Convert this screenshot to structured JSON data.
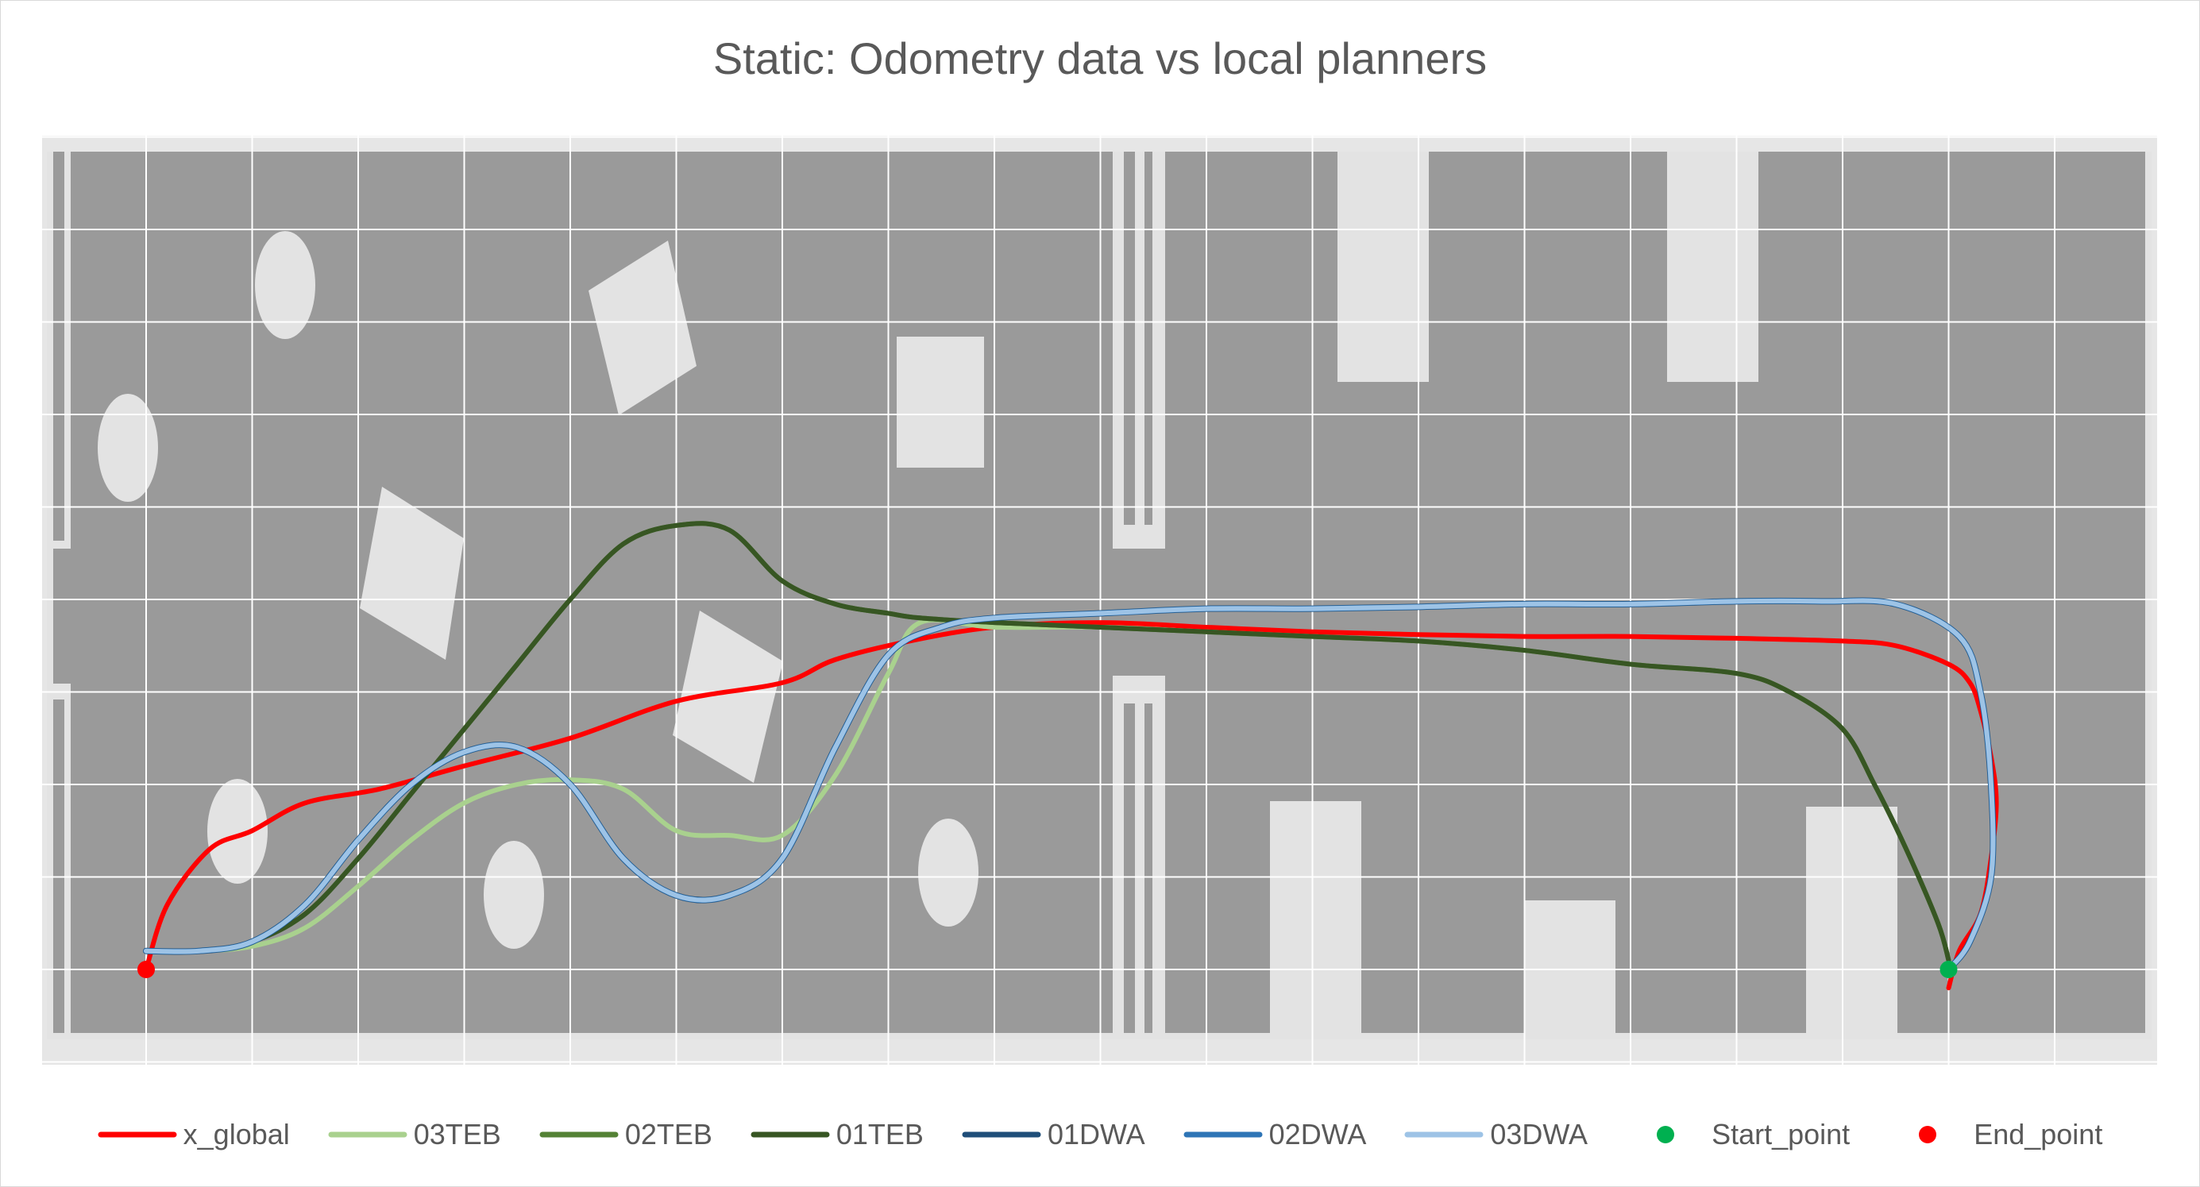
{
  "chart_data": {
    "type": "line",
    "title": "Static: Odometry data vs local planners",
    "xlabel": "",
    "ylabel": "",
    "xlim": [
      0,
      20
    ],
    "ylim": [
      -1,
      9
    ],
    "grid": true,
    "legend_position": "bottom",
    "colors": {
      "x_global": "#ff0000",
      "03TEB": "#a9d18e",
      "02TEB": "#548235",
      "01TEB": "#375623",
      "01DWA": "#1f4e79",
      "02DWA": "#2e75b6",
      "03DWA": "#9dc3e6",
      "Start_point": "#00b050",
      "End_point": "#ff0000"
    },
    "series": [
      {
        "name": "x_global",
        "kind": "line",
        "x": [
          0,
          0.2,
          0.6,
          1.0,
          1.5,
          2.2,
          3.0,
          4.0,
          5.0,
          6.0,
          6.5,
          7.2,
          8.0,
          9.0,
          10.0,
          11.0,
          12.0,
          13.0,
          14.0,
          15.0,
          16.0,
          16.5,
          17.0,
          17.2,
          17.3,
          17.4,
          17.45,
          17.4,
          17.3,
          17.1,
          17.0
        ],
        "y": [
          0.0,
          0.7,
          1.3,
          1.5,
          1.8,
          1.95,
          2.2,
          2.5,
          2.9,
          3.1,
          3.35,
          3.55,
          3.7,
          3.75,
          3.7,
          3.65,
          3.62,
          3.6,
          3.6,
          3.58,
          3.55,
          3.5,
          3.3,
          3.1,
          2.8,
          2.3,
          1.8,
          1.2,
          0.6,
          0.2,
          -0.2
        ]
      },
      {
        "name": "03TEB",
        "kind": "line",
        "x": [
          0,
          0.5,
          1.0,
          1.5,
          2.0,
          2.5,
          3.0,
          3.5,
          4.0,
          4.5,
          5.0,
          5.5,
          6.0,
          6.5,
          7.0,
          7.3,
          8.0,
          9.0,
          10.0,
          11.0,
          12.0,
          13.0,
          14.0,
          15.0,
          15.5,
          16.0,
          16.3,
          16.6,
          16.9,
          17.0
        ],
        "y": [
          0.2,
          0.2,
          0.25,
          0.45,
          0.9,
          1.4,
          1.8,
          2.0,
          2.05,
          1.95,
          1.5,
          1.45,
          1.45,
          2.1,
          3.2,
          3.75,
          3.7,
          3.7,
          3.65,
          3.6,
          3.55,
          3.45,
          3.3,
          3.2,
          3.0,
          2.6,
          2.0,
          1.3,
          0.5,
          0.1
        ]
      },
      {
        "name": "02TEB",
        "kind": "line",
        "x": [
          0,
          0.5,
          1.0,
          1.5,
          2.0,
          2.5,
          3.0,
          3.5,
          4.0,
          4.5,
          5.0,
          5.5,
          6.0,
          6.5,
          7.0,
          7.3,
          8.0,
          9.0,
          10.0,
          11.0,
          12.0,
          13.0,
          14.0,
          15.0,
          15.5,
          16.0,
          16.3,
          16.6,
          16.9,
          17.0
        ],
        "y": [
          0.2,
          0.2,
          0.3,
          0.6,
          1.2,
          1.9,
          2.6,
          3.3,
          4.0,
          4.6,
          4.8,
          4.75,
          4.2,
          3.95,
          3.85,
          3.8,
          3.75,
          3.7,
          3.65,
          3.6,
          3.55,
          3.45,
          3.3,
          3.2,
          3.0,
          2.6,
          2.0,
          1.3,
          0.5,
          0.1
        ]
      },
      {
        "name": "01TEB",
        "kind": "line",
        "x": [
          0,
          0.5,
          1.0,
          1.5,
          2.0,
          2.5,
          3.0,
          3.5,
          4.0,
          4.5,
          5.0,
          5.5,
          6.0,
          6.5,
          7.0,
          7.3,
          8.0,
          9.0,
          10.0,
          11.0,
          12.0,
          13.0,
          14.0,
          15.0,
          15.5,
          16.0,
          16.3,
          16.6,
          16.9,
          17.0
        ],
        "y": [
          0.2,
          0.2,
          0.3,
          0.6,
          1.2,
          1.9,
          2.6,
          3.3,
          4.0,
          4.6,
          4.8,
          4.75,
          4.2,
          3.95,
          3.85,
          3.8,
          3.75,
          3.7,
          3.65,
          3.6,
          3.55,
          3.45,
          3.3,
          3.2,
          3.0,
          2.6,
          2.0,
          1.3,
          0.5,
          0.1
        ]
      },
      {
        "name": "01DWA",
        "kind": "line",
        "x": [
          0,
          0.5,
          1.0,
          1.5,
          2.0,
          2.5,
          3.0,
          3.5,
          4.0,
          4.5,
          5.0,
          5.5,
          6.0,
          6.5,
          7.0,
          7.5,
          8.0,
          9.0,
          10.0,
          11.0,
          12.0,
          13.0,
          14.0,
          15.0,
          15.8,
          16.5,
          17.1,
          17.3,
          17.4,
          17.4,
          17.2,
          17.0
        ],
        "y": [
          0.2,
          0.2,
          0.3,
          0.7,
          1.4,
          2.0,
          2.35,
          2.4,
          2.0,
          1.2,
          0.8,
          0.8,
          1.2,
          2.4,
          3.4,
          3.7,
          3.8,
          3.85,
          3.9,
          3.9,
          3.92,
          3.95,
          3.95,
          3.98,
          3.98,
          3.95,
          3.6,
          3.0,
          2.0,
          1.0,
          0.3,
          0.0
        ]
      },
      {
        "name": "02DWA",
        "kind": "line",
        "x": [
          0,
          0.5,
          1.0,
          1.5,
          2.0,
          2.5,
          3.0,
          3.5,
          4.0,
          4.5,
          5.0,
          5.5,
          6.0,
          6.5,
          7.0,
          7.5,
          8.0,
          9.0,
          10.0,
          11.0,
          12.0,
          13.0,
          14.0,
          15.0,
          15.8,
          16.5,
          17.1,
          17.3,
          17.4,
          17.4,
          17.2,
          17.0
        ],
        "y": [
          0.2,
          0.2,
          0.3,
          0.7,
          1.4,
          2.0,
          2.35,
          2.4,
          2.0,
          1.2,
          0.8,
          0.8,
          1.2,
          2.4,
          3.4,
          3.7,
          3.8,
          3.85,
          3.9,
          3.9,
          3.92,
          3.95,
          3.95,
          3.98,
          3.98,
          3.95,
          3.6,
          3.0,
          2.0,
          1.0,
          0.3,
          0.0
        ]
      },
      {
        "name": "03DWA",
        "kind": "line",
        "x": [
          0,
          0.5,
          1.0,
          1.5,
          2.0,
          2.5,
          3.0,
          3.5,
          4.0,
          4.5,
          5.0,
          5.5,
          6.0,
          6.5,
          7.0,
          7.5,
          8.0,
          9.0,
          10.0,
          11.0,
          12.0,
          13.0,
          14.0,
          15.0,
          15.8,
          16.5,
          17.1,
          17.3,
          17.4,
          17.4,
          17.2,
          17.0
        ],
        "y": [
          0.2,
          0.2,
          0.3,
          0.7,
          1.4,
          2.0,
          2.35,
          2.4,
          2.0,
          1.2,
          0.8,
          0.8,
          1.2,
          2.4,
          3.4,
          3.7,
          3.8,
          3.85,
          3.9,
          3.9,
          3.92,
          3.95,
          3.95,
          3.98,
          3.98,
          3.95,
          3.6,
          3.0,
          2.0,
          1.0,
          0.3,
          0.0
        ]
      },
      {
        "name": "Start_point",
        "kind": "point",
        "x": [
          17.0
        ],
        "y": [
          0.0
        ]
      },
      {
        "name": "End_point",
        "kind": "point",
        "x": [
          0.0
        ],
        "y": [
          0.0
        ]
      }
    ],
    "legend": [
      {
        "name": "x_global",
        "marker": "line",
        "color": "#ff0000"
      },
      {
        "name": "03TEB",
        "marker": "line",
        "color": "#a9d18e"
      },
      {
        "name": "02TEB",
        "marker": "line",
        "color": "#548235"
      },
      {
        "name": "01TEB",
        "marker": "line",
        "color": "#375623"
      },
      {
        "name": "01DWA",
        "marker": "line",
        "color": "#1f4e79"
      },
      {
        "name": "02DWA",
        "marker": "line",
        "color": "#2e75b6"
      },
      {
        "name": "03DWA",
        "marker": "line",
        "color": "#9dc3e6"
      },
      {
        "name": "Start_point",
        "marker": "dot",
        "color": "#00b050"
      },
      {
        "name": "End_point",
        "marker": "dot",
        "color": "#ff0000"
      }
    ]
  }
}
